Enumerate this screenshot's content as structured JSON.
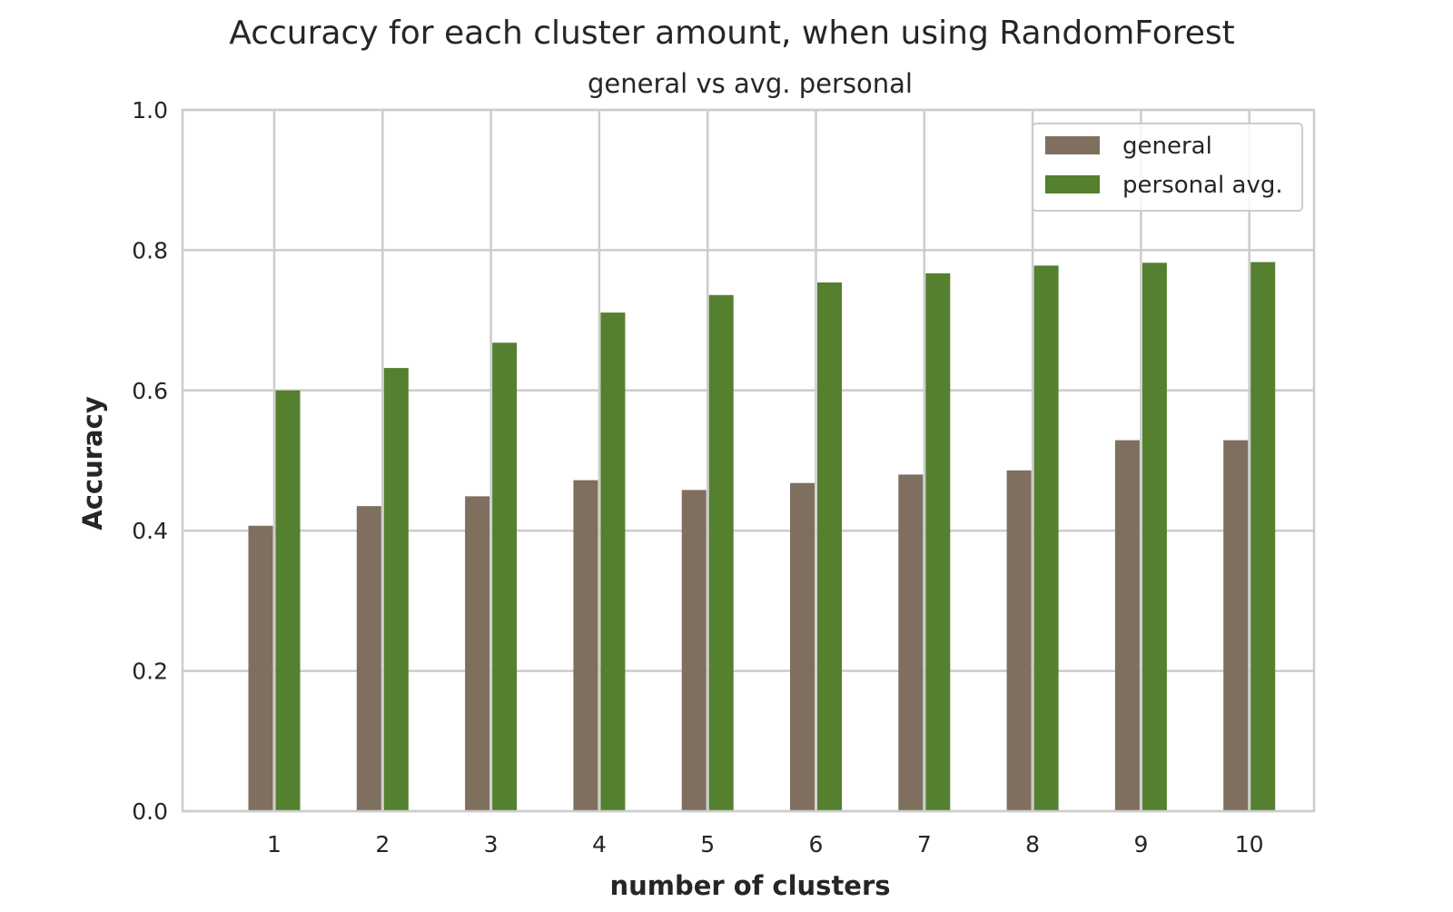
{
  "chart_data": {
    "type": "bar",
    "title": "Accuracy for each cluster amount, when using RandomForest",
    "subtitle": "general vs avg. personal",
    "xlabel": "number of clusters",
    "ylabel": "Accuracy",
    "categories": [
      "1",
      "2",
      "3",
      "4",
      "5",
      "6",
      "7",
      "8",
      "9",
      "10"
    ],
    "ylim": [
      0,
      1.0
    ],
    "yticks": [
      "0.0",
      "0.2",
      "0.4",
      "0.6",
      "0.8",
      "1.0"
    ],
    "grid": true,
    "legend_position": "top-right",
    "series": [
      {
        "name": "general",
        "color": "#7f6f5f",
        "values": [
          0.407,
          0.435,
          0.449,
          0.472,
          0.458,
          0.468,
          0.48,
          0.486,
          0.529,
          0.529
        ]
      },
      {
        "name": "personal avg.",
        "color": "#548030",
        "values": [
          0.6,
          0.632,
          0.668,
          0.711,
          0.736,
          0.754,
          0.767,
          0.778,
          0.782,
          0.783
        ]
      }
    ]
  }
}
